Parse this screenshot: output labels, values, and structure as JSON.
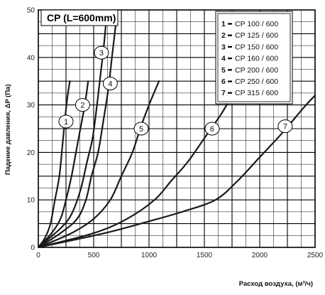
{
  "chart_data": {
    "type": "line",
    "title": "CP (L=600mm)",
    "xlabel": "Расход воздуха, (м³/ч)",
    "ylabel": "Падение давления, ΔP (Па)",
    "xlim": [
      0,
      2500
    ],
    "ylim": [
      0,
      50
    ],
    "x_ticks": [
      0,
      500,
      1000,
      1500,
      2000,
      2500
    ],
    "y_ticks": [
      0,
      10,
      20,
      30,
      40,
      50
    ],
    "x_tick_labels": [
      "0",
      "500",
      "1000",
      "1500",
      "2000",
      "2500"
    ],
    "y_tick_labels": [
      "0",
      "10",
      "20",
      "30",
      "40",
      "50"
    ],
    "grid": true,
    "legend_position": "top-right",
    "series": [
      {
        "label": "1",
        "legend": "CP 100 / 600",
        "label_at": [
          250,
          26.5
        ],
        "points": [
          [
            0,
            0
          ],
          [
            60,
            2
          ],
          [
            110,
            5
          ],
          [
            150,
            10
          ],
          [
            190,
            15
          ],
          [
            220,
            22
          ],
          [
            245,
            28
          ],
          [
            265,
            32
          ],
          [
            285,
            35
          ]
        ]
      },
      {
        "label": "2",
        "legend": "CP 125 / 600",
        "label_at": [
          400,
          30
        ],
        "points": [
          [
            0,
            0
          ],
          [
            120,
            3
          ],
          [
            200,
            6
          ],
          [
            250,
            10
          ],
          [
            300,
            15
          ],
          [
            340,
            20
          ],
          [
            380,
            25
          ],
          [
            420,
            30
          ],
          [
            450,
            35
          ]
        ]
      },
      {
        "label": "3",
        "legend": "CP 150 / 600",
        "label_at": [
          570,
          41
        ],
        "points": [
          [
            0,
            0
          ],
          [
            200,
            4
          ],
          [
            300,
            7
          ],
          [
            380,
            12
          ],
          [
            440,
            18
          ],
          [
            490,
            23
          ],
          [
            530,
            30
          ],
          [
            560,
            36
          ],
          [
            590,
            42
          ],
          [
            610,
            47
          ]
        ]
      },
      {
        "label": "4",
        "legend": "CP 160 / 600",
        "label_at": [
          650,
          34.5
        ],
        "points": [
          [
            0,
            0
          ],
          [
            200,
            3
          ],
          [
            350,
            6
          ],
          [
            430,
            10
          ],
          [
            480,
            15
          ],
          [
            540,
            20
          ],
          [
            590,
            27
          ],
          [
            630,
            33
          ],
          [
            665,
            40
          ],
          [
            700,
            47
          ]
        ]
      },
      {
        "label": "5",
        "legend": "CP 200 / 600",
        "label_at": [
          930,
          25
        ],
        "points": [
          [
            0,
            0
          ],
          [
            300,
            3
          ],
          [
            500,
            6
          ],
          [
            650,
            10
          ],
          [
            750,
            15
          ],
          [
            850,
            20
          ],
          [
            920,
            25
          ],
          [
            1000,
            30
          ],
          [
            1090,
            35
          ]
        ]
      },
      {
        "label": "6",
        "legend": "CP 250 / 600",
        "label_at": [
          1570,
          25
        ],
        "points": [
          [
            0,
            0
          ],
          [
            500,
            3
          ],
          [
            800,
            6
          ],
          [
            1050,
            10
          ],
          [
            1200,
            14
          ],
          [
            1350,
            18
          ],
          [
            1500,
            23
          ],
          [
            1650,
            28
          ],
          [
            1750,
            32
          ]
        ]
      },
      {
        "label": "7",
        "legend": "CP 315 / 600",
        "label_at": [
          2230,
          25.5
        ],
        "points": [
          [
            0,
            0
          ],
          [
            600,
            3
          ],
          [
            1000,
            5.5
          ],
          [
            1300,
            7.5
          ],
          [
            1600,
            10
          ],
          [
            1800,
            14
          ],
          [
            2000,
            19
          ],
          [
            2200,
            24
          ],
          [
            2400,
            29.5
          ],
          [
            2500,
            32
          ]
        ]
      }
    ]
  }
}
